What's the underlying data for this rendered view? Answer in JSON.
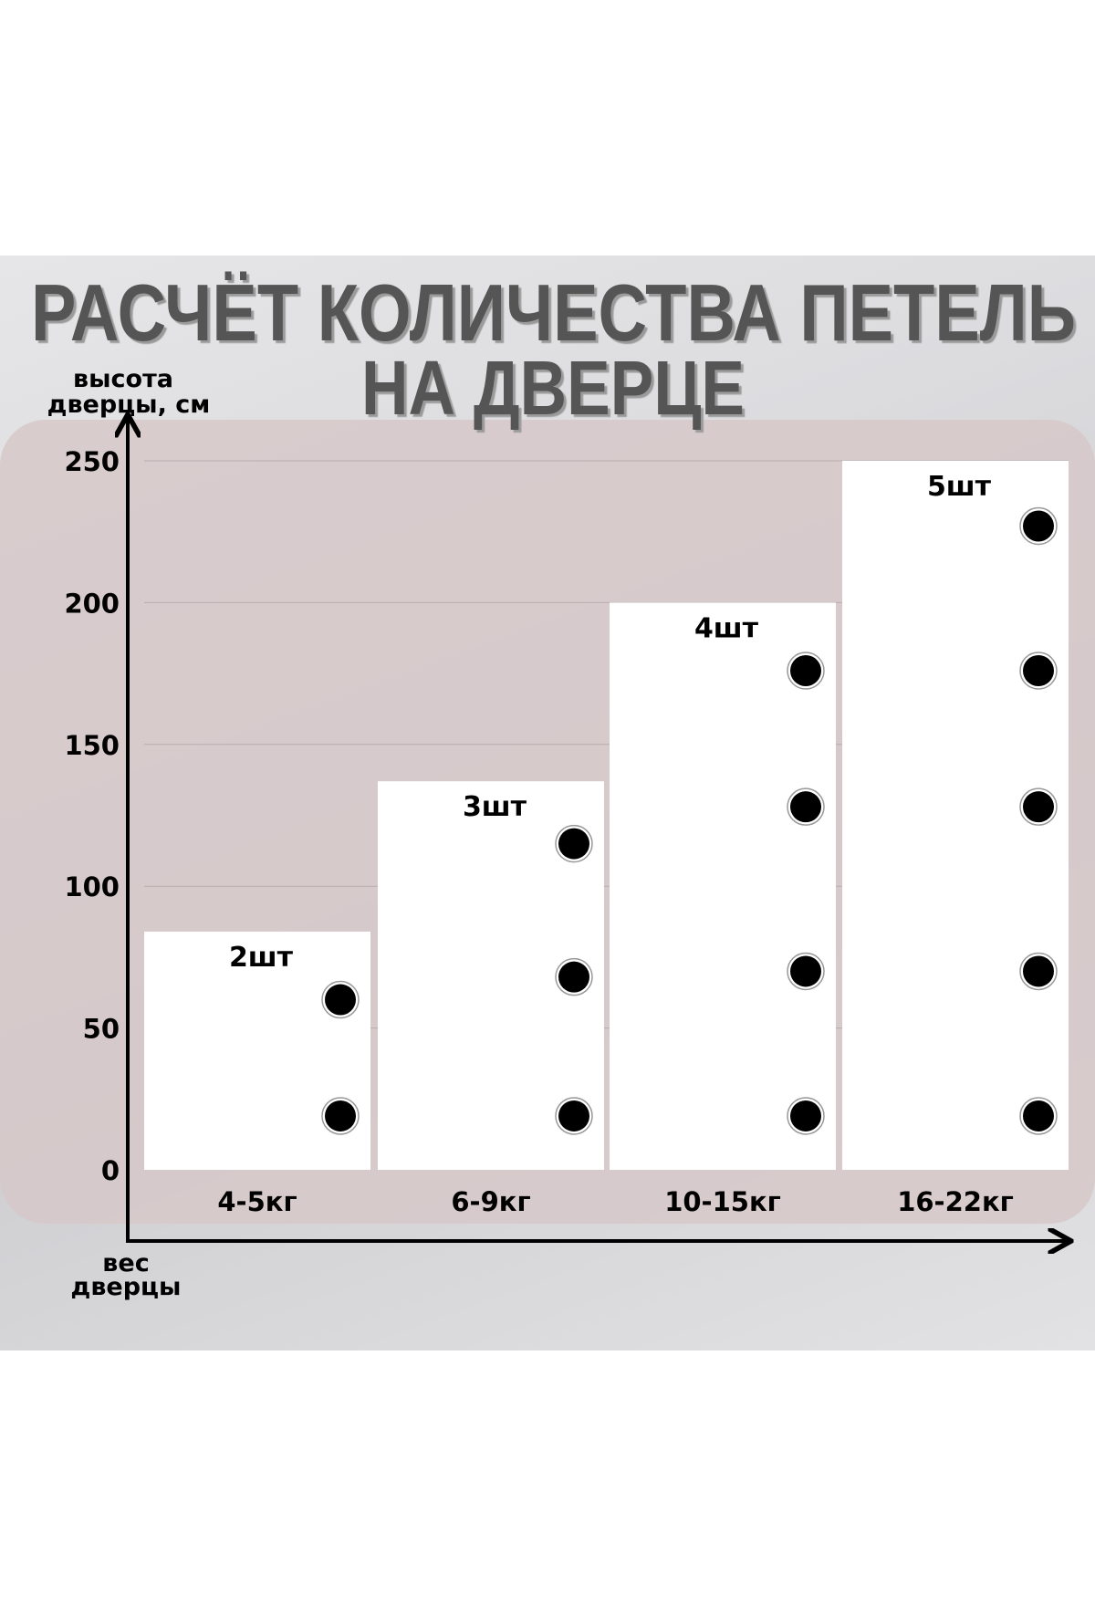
{
  "title": {
    "line1": "РАСЧЁТ КОЛИЧЕСТВА ПЕТЕЛЬ",
    "line2": "НА ДВЕРЦЕ",
    "color": "#555555"
  },
  "chart_data": {
    "type": "bar",
    "title": "РАСЧЁТ КОЛИЧЕСТВА ПЕТЕЛЬ НА ДВЕРЦЕ",
    "ylabel_line1": "высота",
    "ylabel_line2": "дверцы, см",
    "xlabel_line1": "вес",
    "xlabel_line2": "дверцы",
    "ylim": [
      0,
      250
    ],
    "yticks": [
      "0",
      "50",
      "100",
      "150",
      "200",
      "250"
    ],
    "grid": true,
    "categories": [
      "4-5кг",
      "6-9кг",
      "10-15кг",
      "16-22кг"
    ],
    "values": [
      84,
      137,
      200,
      250
    ],
    "count_labels": [
      "2шт",
      "3шт",
      "4шт",
      "5шт"
    ],
    "hinge_heights": [
      [
        19,
        60
      ],
      [
        19,
        68,
        115
      ],
      [
        19,
        70,
        128,
        176
      ],
      [
        19,
        70,
        128,
        176,
        227
      ]
    ],
    "bar_color": "#ffffff",
    "hinge_color": "#000000"
  }
}
